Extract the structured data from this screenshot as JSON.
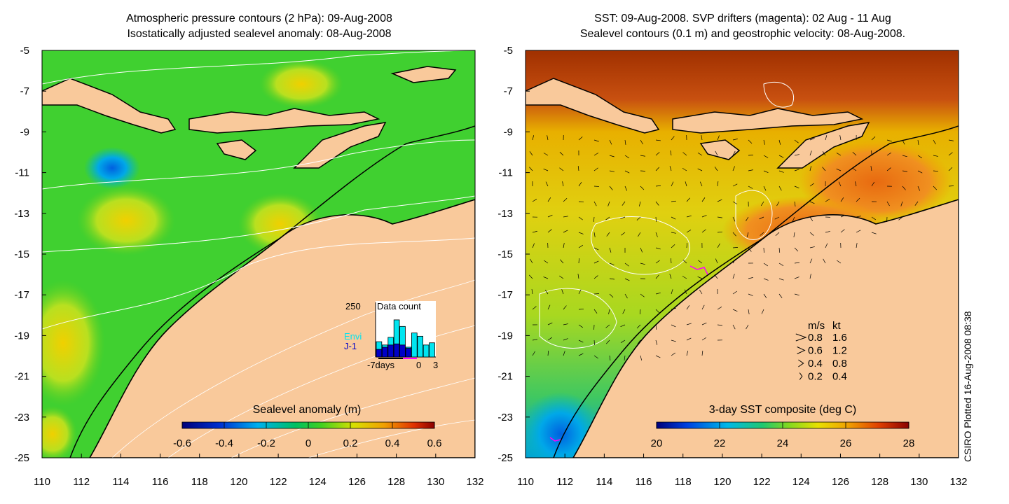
{
  "left_panel": {
    "title_line1": "Atmospheric pressure contours (2 hPa): 09-Aug-2008",
    "title_line2": "Isostatically adjusted sealevel anomaly: 08-Aug-2008",
    "colorbar": {
      "label": "Sealevel anomaly (m)",
      "ticks": [
        "-0.6",
        "-0.4",
        "-0.2",
        "0",
        "0.2",
        "0.4",
        "0.6"
      ]
    },
    "inset": {
      "title": "Data count",
      "ymax_label": "250",
      "legend": [
        {
          "name": "Envi",
          "color": "#00e5f0"
        },
        {
          "name": "J-1",
          "color": "#0000c8"
        }
      ],
      "x_labels": [
        "-7days",
        "0",
        "3"
      ],
      "chart_data": {
        "type": "bar",
        "title": "Data count",
        "ylim": [
          0,
          250
        ],
        "x": [
          -7,
          -6,
          -5,
          -4,
          -3,
          -2,
          -1,
          0,
          1,
          2
        ],
        "series": [
          {
            "name": "Envi",
            "values": [
              70,
              55,
              90,
              170,
              140,
              45,
              110,
              95,
              55,
              65
            ]
          },
          {
            "name": "J-1",
            "values": [
              35,
              45,
              55,
              60,
              55,
              40,
              0,
              0,
              0,
              0
            ]
          }
        ]
      }
    }
  },
  "right_panel": {
    "title_line1": "SST: 09-Aug-2008. SVP drifters (magenta): 02 Aug - 11 Aug",
    "title_line2": "Sealevel contours (0.1 m) and geostrophic velocity: 08-Aug-2008.",
    "colorbar": {
      "label": "3-day SST composite (deg C)",
      "ticks": [
        "20",
        "22",
        "24",
        "26",
        "28"
      ]
    },
    "velocity_legend": {
      "headers": [
        "m/s",
        "kt"
      ],
      "rows": [
        {
          "ms": "0.8",
          "kt": "1.6"
        },
        {
          "ms": "0.6",
          "kt": "1.2"
        },
        {
          "ms": "0.4",
          "kt": "0.8"
        },
        {
          "ms": "0.2",
          "kt": "0.4"
        }
      ]
    }
  },
  "axes": {
    "x_ticks": [
      "110",
      "112",
      "114",
      "116",
      "118",
      "120",
      "122",
      "124",
      "126",
      "128",
      "130",
      "132"
    ],
    "y_ticks": [
      "-5",
      "-7",
      "-9",
      "-11",
      "-13",
      "-15",
      "-17",
      "-19",
      "-21",
      "-23",
      "-25"
    ],
    "xlim": [
      110,
      132
    ],
    "ylim": [
      -25,
      -5
    ]
  },
  "credit": "CSIRO Plotted 16-Aug-2008 08:38",
  "colors": {
    "land": "#f9c99b",
    "coast": "#000000",
    "drifter": "#ff00ff",
    "contour": "#ffffff"
  }
}
